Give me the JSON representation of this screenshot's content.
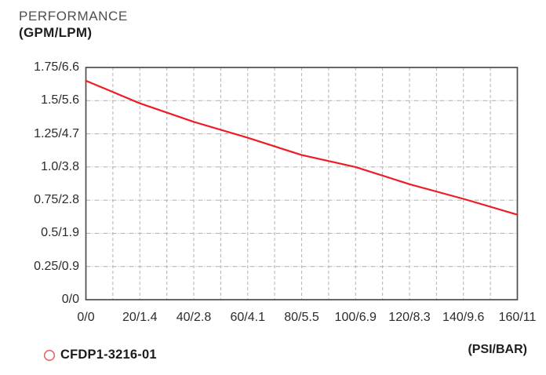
{
  "colors": {
    "line_red": "#ee1c25",
    "legend_marker_red": "#e86462",
    "grid_gray": "#b8b8b8",
    "axis_gray": "#4d4d4d",
    "text_dark": "#2b2b2b"
  },
  "legend": {
    "marker": "circle-outline",
    "label": "CFDP1-3216-01"
  },
  "chart_data": {
    "type": "line",
    "title": "PERFORMANCE",
    "y_unit": "(GPM/LPM)",
    "x_unit": "(PSI/BAR)",
    "xlabel": "(PSI/BAR)",
    "ylabel": "PERFORMANCE (GPM/LPM)",
    "xlim": [
      0,
      160
    ],
    "ylim": [
      0,
      1.75
    ],
    "x_major_step": 20,
    "x_minor_step": 10,
    "y_major_step": 0.25,
    "grid": true,
    "x_tick_labels": [
      "0/0",
      "20/1.4",
      "40/2.8",
      "60/4.1",
      "80/5.5",
      "100/6.9",
      "120/8.3",
      "140/9.6",
      "160/11"
    ],
    "y_tick_labels_bottom_to_top": [
      "0/0",
      "0.25/0.9",
      "0.5/1.9",
      "0.75/2.8",
      "1.0/3.8",
      "1.25/4.7",
      "1.5/5.6",
      "1.75/6.6"
    ],
    "series": [
      {
        "name": "CFDP1-3216-01",
        "x": [
          0,
          20,
          40,
          60,
          80,
          100,
          120,
          140,
          160
        ],
        "y": [
          1.65,
          1.48,
          1.34,
          1.22,
          1.09,
          1.0,
          0.87,
          0.76,
          0.64
        ]
      }
    ]
  }
}
